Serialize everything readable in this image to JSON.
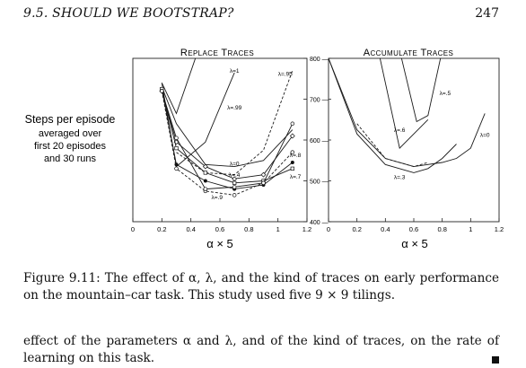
{
  "header": {
    "running_head": "9.5.  SHOULD WE BOOTSTRAP?",
    "page_number": "247"
  },
  "figure": {
    "side_label": [
      "Steps per episode",
      "averaged over",
      "first 20 episodes",
      "and 30 runs"
    ],
    "left_panel_title": "Replace Traces",
    "right_panel_title": "Accumulate Traces",
    "xlabel": "α × 5"
  },
  "chart_data": [
    {
      "type": "line",
      "title": "Replace Traces",
      "xlabel": "α × 5",
      "ylabel": "",
      "xlim": [
        0,
        1.2
      ],
      "ylim": [
        400,
        800
      ],
      "xticks": [
        "0",
        "0.2",
        "0.4",
        "0.6",
        "0.8",
        "1",
        "1.2"
      ],
      "yticks": [
        "400",
        "500",
        "600",
        "700",
        "800"
      ],
      "series": [
        {
          "name": "λ=1",
          "style": "solid",
          "marker": "none",
          "label_at": [
            0.7,
            765
          ],
          "x": [
            0.2,
            0.3,
            0.45
          ],
          "y": [
            740,
            665,
            820
          ]
        },
        {
          "name": "λ=.99",
          "style": "solid",
          "marker": "none",
          "label_at": [
            0.7,
            675
          ],
          "x": [
            0.2,
            0.3,
            0.5,
            0.7
          ],
          "y": [
            740,
            535,
            595,
            765
          ]
        },
        {
          "name": "λ=.95",
          "style": "dashed",
          "marker": "none",
          "label_at": [
            1.05,
            757
          ],
          "x": [
            0.3,
            0.5,
            0.7,
            0.9,
            1.1
          ],
          "y": [
            570,
            520,
            515,
            575,
            770
          ]
        },
        {
          "name": "λ=0",
          "style": "solid",
          "marker": "none",
          "label_at": [
            0.7,
            537
          ],
          "x": [
            0.2,
            0.3,
            0.5,
            0.7,
            0.9,
            1.1
          ],
          "y": [
            730,
            640,
            540,
            535,
            550,
            625
          ]
        },
        {
          "name": "λ=.4",
          "style": "solid",
          "marker": "diamond",
          "label_at": [
            0.7,
            510
          ],
          "x": [
            0.2,
            0.3,
            0.5,
            0.7,
            0.9,
            1.1
          ],
          "y": [
            720,
            595,
            535,
            505,
            515,
            610
          ]
        },
        {
          "name": "λ=.8",
          "style": "solid",
          "marker": "filled-circle",
          "label_at": [
            1.12,
            558
          ],
          "x": [
            0.2,
            0.3,
            0.5,
            0.7,
            0.9,
            1.1
          ],
          "y": [
            725,
            540,
            500,
            480,
            490,
            545
          ]
        },
        {
          "name": "λ=.7",
          "style": "solid",
          "marker": "open-square",
          "label_at": [
            1.12,
            506
          ],
          "x": [
            0.2,
            0.3,
            0.5,
            0.7,
            0.9,
            1.1
          ],
          "y": [
            725,
            580,
            520,
            495,
            500,
            530
          ]
        },
        {
          "name": "λ=.9",
          "style": "dashed",
          "marker": "open-circle",
          "label_at": [
            0.58,
            455
          ],
          "x": [
            0.2,
            0.3,
            0.5,
            0.7,
            0.9,
            1.1
          ],
          "y": [
            720,
            530,
            475,
            465,
            495,
            570
          ]
        },
        {
          "name": "",
          "style": "solid",
          "marker": "open-circle",
          "label_at": null,
          "x": [
            0.2,
            0.3,
            0.5,
            0.7,
            0.9,
            1.1
          ],
          "y": [
            720,
            605,
            480,
            485,
            495,
            640
          ]
        }
      ]
    },
    {
      "type": "line",
      "title": "Accumulate Traces",
      "xlabel": "α × 5",
      "ylabel": "",
      "xlim": [
        0,
        1.2
      ],
      "ylim": [
        400,
        800
      ],
      "xticks": [
        "0",
        "0.2",
        "0.4",
        "0.6",
        "0.8",
        "1",
        "1.2"
      ],
      "yticks": [
        "400",
        "500",
        "600",
        "700",
        "800"
      ],
      "series": [
        {
          "name": "λ=.5",
          "style": "solid",
          "marker": "none",
          "label_at": [
            0.82,
            710
          ],
          "x": [
            0.5,
            0.62,
            0.7,
            0.8
          ],
          "y": [
            820,
            645,
            660,
            820
          ]
        },
        {
          "name": "λ=.6",
          "style": "solid",
          "marker": "none",
          "label_at": [
            0.5,
            620
          ],
          "x": [
            0.35,
            0.5,
            0.7
          ],
          "y": [
            820,
            580,
            650
          ]
        },
        {
          "name": "λ=0",
          "style": "solid",
          "marker": "none",
          "label_at": [
            1.1,
            608
          ],
          "x": [
            0.0,
            0.2,
            0.4,
            0.6,
            0.8,
            0.9,
            1.0,
            1.1
          ],
          "y": [
            800,
            625,
            555,
            535,
            545,
            555,
            580,
            665
          ]
        },
        {
          "name": "λ=.3",
          "style": "solid",
          "marker": "none",
          "label_at": [
            0.5,
            504
          ],
          "x": [
            0.0,
            0.2,
            0.4,
            0.6,
            0.7,
            0.8,
            0.9
          ],
          "y": [
            800,
            615,
            540,
            520,
            530,
            555,
            590
          ]
        },
        {
          "name": "",
          "style": "dashed",
          "marker": "none",
          "label_at": null,
          "x": [
            0.2,
            0.4,
            0.6,
            0.7
          ],
          "y": [
            640,
            555,
            535,
            545
          ]
        }
      ]
    }
  ],
  "caption": "Figure 9.11:  The effect of α, λ, and the kind of traces on early performance on the mountain–car task.  This study used five 9 × 9 tilings.",
  "body_text": "effect of the parameters α and λ, and of the kind of traces, on the rate of learning on this task."
}
